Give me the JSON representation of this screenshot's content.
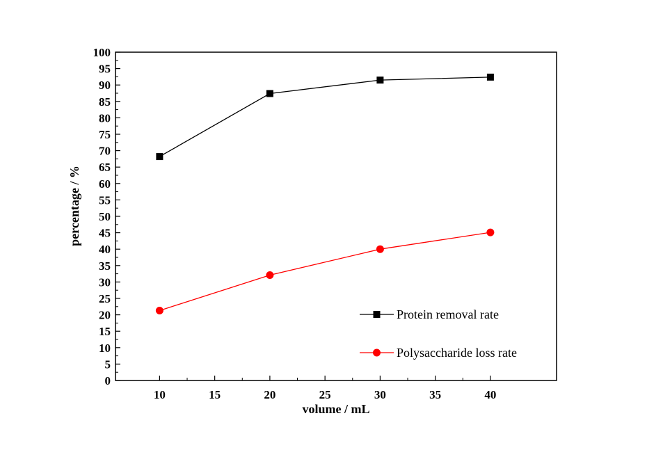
{
  "chart_data": {
    "type": "line",
    "title": "",
    "xlabel": "volume / mL",
    "ylabel": "percentage / %",
    "xlim": [
      6,
      46
    ],
    "ylim": [
      0,
      100
    ],
    "x_ticks": [
      10,
      15,
      20,
      25,
      30,
      35,
      40
    ],
    "y_ticks": [
      0,
      5,
      10,
      15,
      20,
      25,
      30,
      35,
      40,
      45,
      50,
      55,
      60,
      65,
      70,
      75,
      80,
      85,
      90,
      95,
      100
    ],
    "x": [
      10,
      20,
      30,
      40
    ],
    "series": [
      {
        "name": "Protein removal rate",
        "values": [
          68.2,
          87.4,
          91.5,
          92.4
        ],
        "color": "#000000",
        "marker": "square"
      },
      {
        "name": "Polysaccharide loss rate",
        "values": [
          21.3,
          32.1,
          40.0,
          45.1
        ],
        "color": "#ff0000",
        "marker": "circle"
      }
    ],
    "legend": "lower-right",
    "grid": false
  }
}
